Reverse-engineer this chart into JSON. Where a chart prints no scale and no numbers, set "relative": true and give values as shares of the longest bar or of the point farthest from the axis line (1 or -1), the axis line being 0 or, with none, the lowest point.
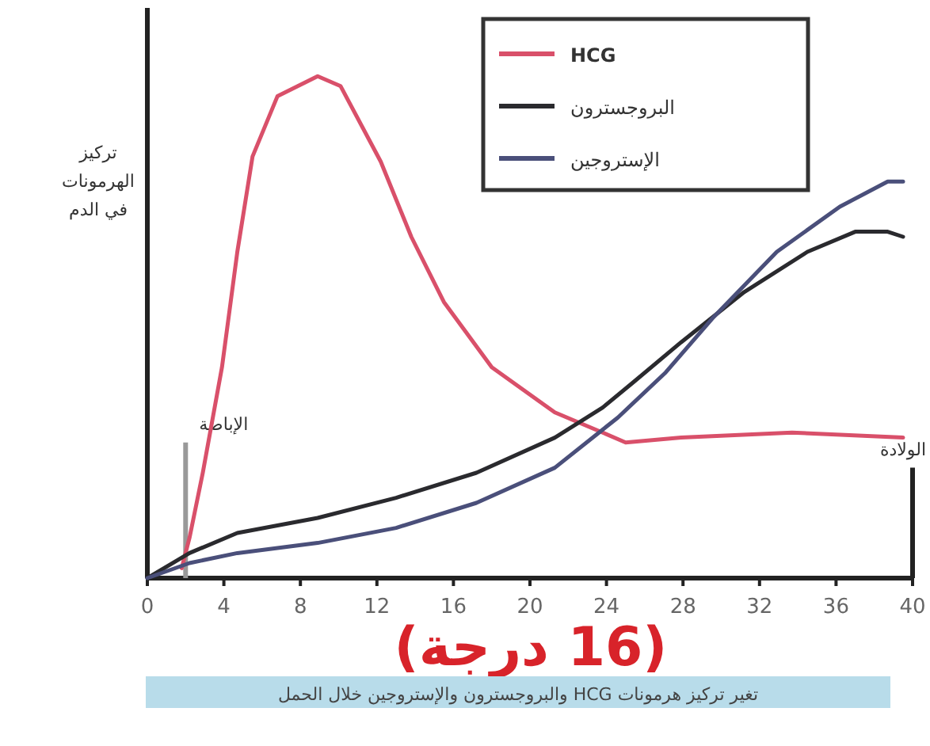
{
  "chart_data": {
    "type": "line",
    "relative": true,
    "ylabel": "تركيز الهرمونات في الدم",
    "xlim": [
      0,
      40
    ],
    "xticks": [
      0,
      4,
      8,
      12,
      16,
      20,
      24,
      28,
      32,
      36,
      40
    ],
    "legend": "top",
    "series": [
      {
        "name": "HCG",
        "color": "#d9506a",
        "x": [
          1.8,
          2.2,
          2.9,
          3.9,
          4.7,
          5.5,
          6.8,
          8.9,
          10.1,
          12.2,
          13.8,
          15.5,
          18.0,
          21.3,
          23.8,
          25.0,
          27.9,
          33.7,
          39.5
        ],
        "values": [
          0.02,
          0.08,
          0.21,
          0.42,
          0.65,
          0.84,
          0.96,
          1.0,
          0.98,
          0.83,
          0.68,
          0.55,
          0.42,
          0.33,
          0.29,
          0.27,
          0.28,
          0.29,
          0.28
        ]
      },
      {
        "name": "البروجسترون",
        "color": "#2a2a2e",
        "x": [
          0,
          2.2,
          4.7,
          8.9,
          13.0,
          17.2,
          21.3,
          23.8,
          25.4,
          27.9,
          31.2,
          34.5,
          37.0,
          38.7,
          39.5
        ],
        "values": [
          0,
          0.05,
          0.09,
          0.12,
          0.16,
          0.21,
          0.28,
          0.34,
          0.39,
          0.47,
          0.57,
          0.65,
          0.69,
          0.69,
          0.68
        ]
      },
      {
        "name": "الإستروجين",
        "color": "#4a4f7a",
        "x": [
          0,
          2.2,
          4.7,
          8.9,
          13.0,
          17.2,
          21.3,
          24.6,
          27.1,
          29.6,
          32.9,
          36.2,
          38.7,
          39.5
        ],
        "values": [
          0,
          0.03,
          0.05,
          0.07,
          0.1,
          0.15,
          0.22,
          0.32,
          0.41,
          0.52,
          0.65,
          0.74,
          0.79,
          0.79
        ]
      }
    ],
    "ref_lines": [
      {
        "axis": "x",
        "value": 2,
        "label": "الإباضة",
        "color": "#999999"
      },
      {
        "axis": "x",
        "value": 40,
        "label": "الولادة",
        "color": "#222222"
      }
    ],
    "annotations": [
      "(16 درجة)",
      "تغير تركيز هرمونات HCG والبروجسترون والإستروجين خلال الحمل"
    ]
  }
}
